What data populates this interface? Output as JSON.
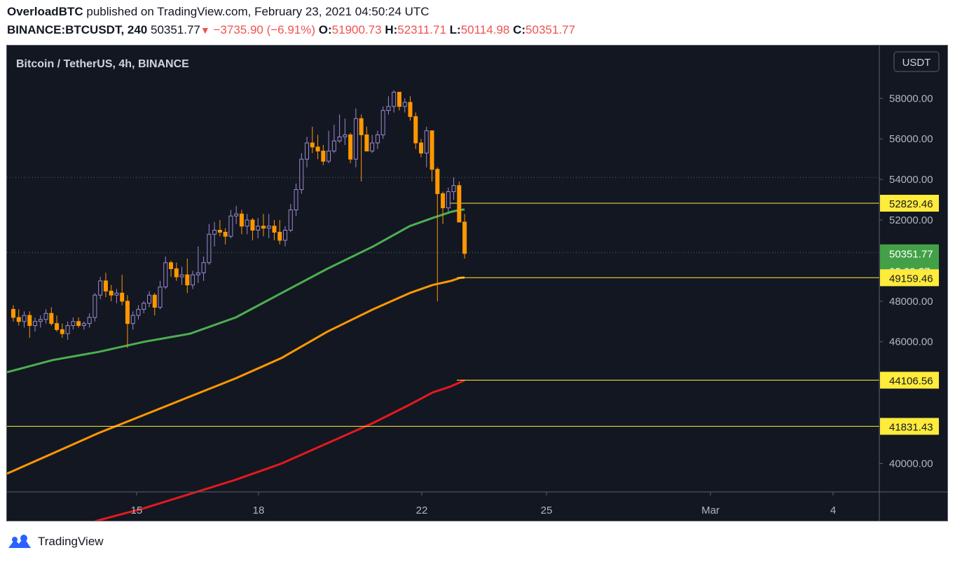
{
  "header": {
    "author": "OverloadBTC",
    "published_text": " published on TradingView.com, February 23, 2021 04:50:24 UTC",
    "symbol": "BINANCE:BTCUSDT, 240",
    "last": "50351.77",
    "change": "−3735.90 (−6.91%)",
    "o_label": "O:",
    "o_value": "51900.73",
    "h_label": "H:",
    "h_value": "52311.71",
    "l_label": "L:",
    "l_value": "50114.98",
    "c_label": "C:",
    "c_value": "50351.77",
    "down_arrow": "▼"
  },
  "chart_title": "Bitcoin / TetherUS, 4h, BINANCE",
  "currency_button": "USDT",
  "footer": {
    "brand": "TradingView"
  },
  "colors": {
    "background": "#131722",
    "up_candle": "#131722",
    "up_outline": "#9c8ad0",
    "down_candle": "#ff9800",
    "ma_green": "#4caf50",
    "ma_orange": "#ff9800",
    "ma_red": "#e31a1c",
    "hline": "#ffeb3b",
    "last_price_bg": "#43a047"
  },
  "chart_data": {
    "type": "candlestick",
    "y_ticks": [
      40000,
      46000,
      48000,
      52000,
      54000,
      56000,
      58000
    ],
    "y_tick_labels": [
      "40000.00",
      "46000.00",
      "48000.00",
      "52000.00",
      "54000.00",
      "56000.00",
      "58000.00"
    ],
    "x_ticks": [
      {
        "label": "15",
        "date": "2021-02-15"
      },
      {
        "label": "18",
        "date": "2021-02-18"
      },
      {
        "label": "22",
        "date": "2021-02-22"
      },
      {
        "label": "25",
        "date": "2021-02-25"
      },
      {
        "label": "Mar",
        "date": "2021-03-01"
      },
      {
        "label": "4",
        "date": "2021-03-04"
      }
    ],
    "horizontal_levels": [
      {
        "value": 52829.46,
        "label": "52829.46"
      },
      {
        "value": 49159.46,
        "label": "49159.46"
      },
      {
        "value": 44106.56,
        "label": "44106.56"
      },
      {
        "value": 41831.43,
        "label": "41831.43"
      }
    ],
    "last_price": {
      "value": 50351.77,
      "label": "50351.77",
      "countdown": "03:09:37"
    },
    "candles": [
      [
        47600,
        47800,
        47000,
        47200
      ],
      [
        47200,
        47600,
        46800,
        47000
      ],
      [
        47000,
        47500,
        46700,
        47300
      ],
      [
        47300,
        47500,
        46200,
        46800
      ],
      [
        46800,
        47200,
        46500,
        47000
      ],
      [
        47000,
        47300,
        46700,
        47100
      ],
      [
        47100,
        47600,
        46900,
        47400
      ],
      [
        47400,
        47700,
        46800,
        46900
      ],
      [
        46900,
        47300,
        46500,
        46600
      ],
      [
        46600,
        46900,
        46200,
        46400
      ],
      [
        46400,
        47000,
        46100,
        46800
      ],
      [
        46800,
        47200,
        46600,
        47000
      ],
      [
        47000,
        47200,
        46700,
        46800
      ],
      [
        46800,
        47000,
        46600,
        46900
      ],
      [
        46900,
        47400,
        46700,
        47200
      ],
      [
        47200,
        48400,
        47000,
        48300
      ],
      [
        48300,
        49200,
        48100,
        49000
      ],
      [
        49000,
        49400,
        48200,
        48500
      ],
      [
        48500,
        48800,
        48000,
        48300
      ],
      [
        48300,
        48600,
        47900,
        48400
      ],
      [
        48400,
        49300,
        47800,
        48000
      ],
      [
        48000,
        48300,
        45700,
        46900
      ],
      [
        46900,
        47500,
        46600,
        47300
      ],
      [
        47300,
        47800,
        47100,
        47600
      ],
      [
        47600,
        48000,
        47400,
        47900
      ],
      [
        47900,
        48500,
        47700,
        48300
      ],
      [
        48300,
        48400,
        47300,
        47700
      ],
      [
        47700,
        49000,
        47600,
        48700
      ],
      [
        48700,
        50200,
        48600,
        49900
      ],
      [
        49900,
        50000,
        49200,
        49600
      ],
      [
        49600,
        49900,
        49000,
        49200
      ],
      [
        49200,
        49700,
        48800,
        49300
      ],
      [
        49300,
        50100,
        48400,
        48800
      ],
      [
        48800,
        49500,
        48600,
        49300
      ],
      [
        49300,
        50700,
        48900,
        49400
      ],
      [
        49400,
        50200,
        49000,
        49900
      ],
      [
        49900,
        51800,
        49800,
        51300
      ],
      [
        51300,
        51900,
        50700,
        51500
      ],
      [
        51500,
        52000,
        51200,
        51400
      ],
      [
        51400,
        51600,
        50800,
        51200
      ],
      [
        51200,
        52500,
        51100,
        52200
      ],
      [
        52200,
        52700,
        51800,
        52300
      ],
      [
        52300,
        52500,
        51300,
        51700
      ],
      [
        51700,
        52300,
        51300,
        52000
      ],
      [
        52000,
        52100,
        51000,
        51500
      ],
      [
        51500,
        52100,
        51100,
        51700
      ],
      [
        51700,
        52300,
        51200,
        51600
      ],
      [
        51600,
        52300,
        51100,
        51700
      ],
      [
        51700,
        52000,
        51000,
        51400
      ],
      [
        51400,
        52000,
        50800,
        51000
      ],
      [
        51000,
        51700,
        50700,
        51500
      ],
      [
        51500,
        52800,
        51400,
        52500
      ],
      [
        52500,
        53800,
        52200,
        53500
      ],
      [
        53500,
        55300,
        53300,
        55000
      ],
      [
        55000,
        56100,
        54600,
        55800
      ],
      [
        55800,
        56600,
        55300,
        55600
      ],
      [
        55600,
        56200,
        55000,
        55400
      ],
      [
        55400,
        55700,
        54700,
        54900
      ],
      [
        54900,
        56400,
        54800,
        55400
      ],
      [
        55400,
        56700,
        55300,
        55900
      ],
      [
        55900,
        57200,
        55800,
        56100
      ],
      [
        56100,
        57000,
        55700,
        56200
      ],
      [
        56200,
        56300,
        54800,
        55000
      ],
      [
        55000,
        57500,
        54600,
        57000
      ],
      [
        57000,
        57200,
        53900,
        56200
      ],
      [
        56200,
        56600,
        55500,
        55400
      ],
      [
        55400,
        56200,
        55300,
        55800
      ],
      [
        55800,
        56400,
        55500,
        56200
      ],
      [
        56200,
        57600,
        56000,
        57400
      ],
      [
        57400,
        58100,
        57200,
        57600
      ],
      [
        57600,
        58400,
        57300,
        58300
      ],
      [
        58300,
        58300,
        57400,
        57600
      ],
      [
        57600,
        58000,
        57300,
        57800
      ],
      [
        57800,
        58100,
        56900,
        57100
      ],
      [
        57100,
        57300,
        55500,
        55800
      ],
      [
        55800,
        56000,
        55100,
        55300
      ],
      [
        55300,
        56600,
        54600,
        56400
      ],
      [
        56400,
        56400,
        53900,
        54500
      ],
      [
        54500,
        54600,
        48000,
        53300
      ],
      [
        53300,
        53400,
        51800,
        52600
      ],
      [
        52600,
        53600,
        52400,
        53400
      ],
      [
        53400,
        54100,
        53000,
        53700
      ],
      [
        53700,
        53900,
        51900,
        51900
      ],
      [
        51900,
        52300,
        50100,
        50352
      ]
    ],
    "ma_series": [
      {
        "period": "short",
        "color": "#4caf50",
        "points": [
          [
            0,
            44500
          ],
          [
            10,
            45100
          ],
          [
            20,
            45500
          ],
          [
            30,
            46000
          ],
          [
            40,
            46400
          ],
          [
            50,
            47200
          ],
          [
            60,
            48400
          ],
          [
            70,
            49600
          ],
          [
            80,
            50700
          ],
          [
            88,
            51700
          ],
          [
            93,
            52100
          ],
          [
            97,
            52400
          ],
          [
            99,
            52500
          ],
          [
            100,
            52520
          ]
        ],
        "x_scale": "percent_of_visible"
      },
      {
        "period": "medium",
        "color": "#ff9800",
        "points": [
          [
            0,
            39500
          ],
          [
            10,
            40500
          ],
          [
            20,
            41500
          ],
          [
            30,
            42400
          ],
          [
            40,
            43300
          ],
          [
            50,
            44200
          ],
          [
            60,
            45200
          ],
          [
            70,
            46500
          ],
          [
            80,
            47600
          ],
          [
            88,
            48400
          ],
          [
            93,
            48800
          ],
          [
            97,
            49000
          ],
          [
            99,
            49150
          ],
          [
            100,
            49170
          ]
        ],
        "x_scale": "percent_of_visible"
      },
      {
        "period": "long",
        "color": "#e31a1c",
        "points": [
          [
            0,
            35800
          ],
          [
            10,
            36500
          ],
          [
            20,
            37200
          ],
          [
            30,
            37800
          ],
          [
            40,
            38500
          ],
          [
            50,
            39200
          ],
          [
            60,
            40000
          ],
          [
            70,
            41000
          ],
          [
            80,
            42000
          ],
          [
            88,
            42900
          ],
          [
            93,
            43500
          ],
          [
            97,
            43800
          ],
          [
            99,
            44000
          ],
          [
            100,
            44100
          ]
        ],
        "x_scale": "percent_of_visible"
      }
    ]
  }
}
